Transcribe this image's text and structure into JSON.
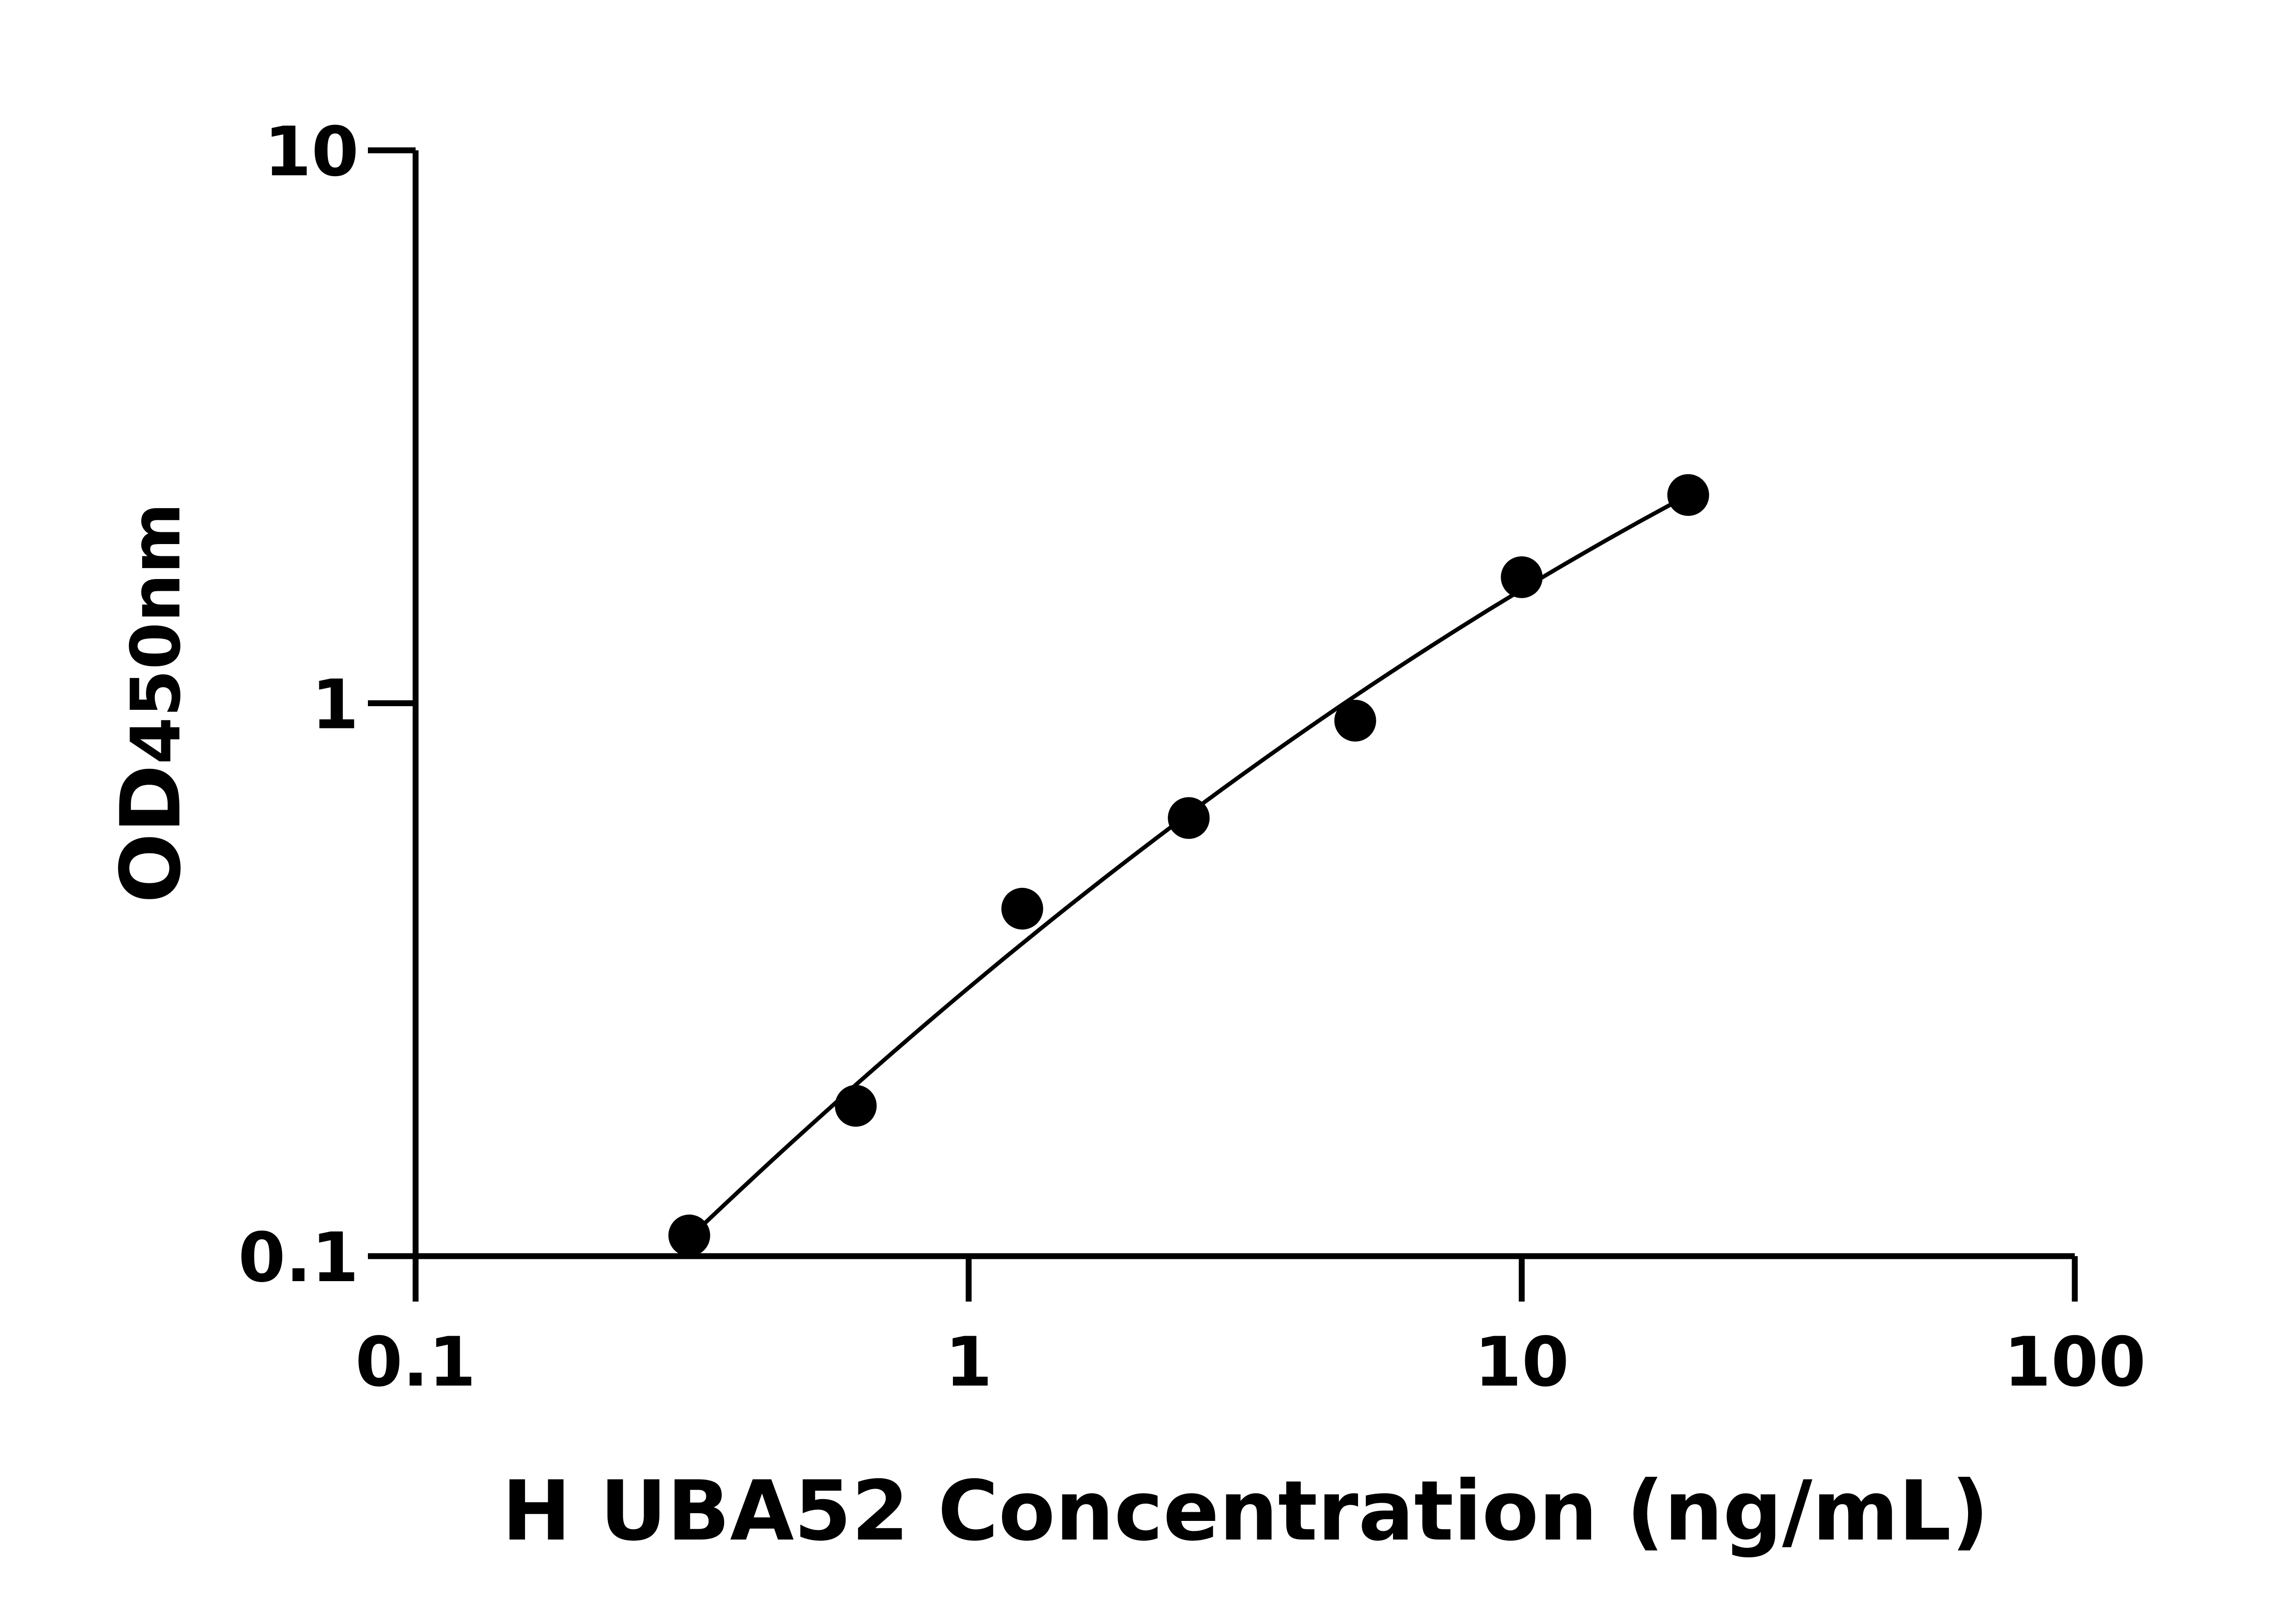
{
  "chart_data": {
    "type": "scatter",
    "title": "",
    "xlabel": "H UBA52 Concentration (ng/mL)",
    "ylabel": {
      "main": "OD",
      "sub": "450nm"
    },
    "xscale": "log",
    "yscale": "log",
    "xlim": [
      0.1,
      100
    ],
    "ylim": [
      0.1,
      10
    ],
    "xticks": [
      {
        "value": 0.1,
        "label": "0.1"
      },
      {
        "value": 1,
        "label": "1"
      },
      {
        "value": 10,
        "label": "10"
      },
      {
        "value": 100,
        "label": "100"
      }
    ],
    "yticks": [
      {
        "value": 0.1,
        "label": "0.1"
      },
      {
        "value": 1,
        "label": "1"
      },
      {
        "value": 10,
        "label": "10"
      }
    ],
    "grid": false,
    "series": [
      {
        "x": [
          0.3125,
          0.625,
          1.25,
          2.5,
          5,
          10,
          20
        ],
        "y": [
          0.109,
          0.187,
          0.425,
          0.62,
          0.93,
          1.69,
          2.38
        ],
        "marker": "filled-circle",
        "fit_line": true,
        "color": "#000000"
      }
    ]
  }
}
